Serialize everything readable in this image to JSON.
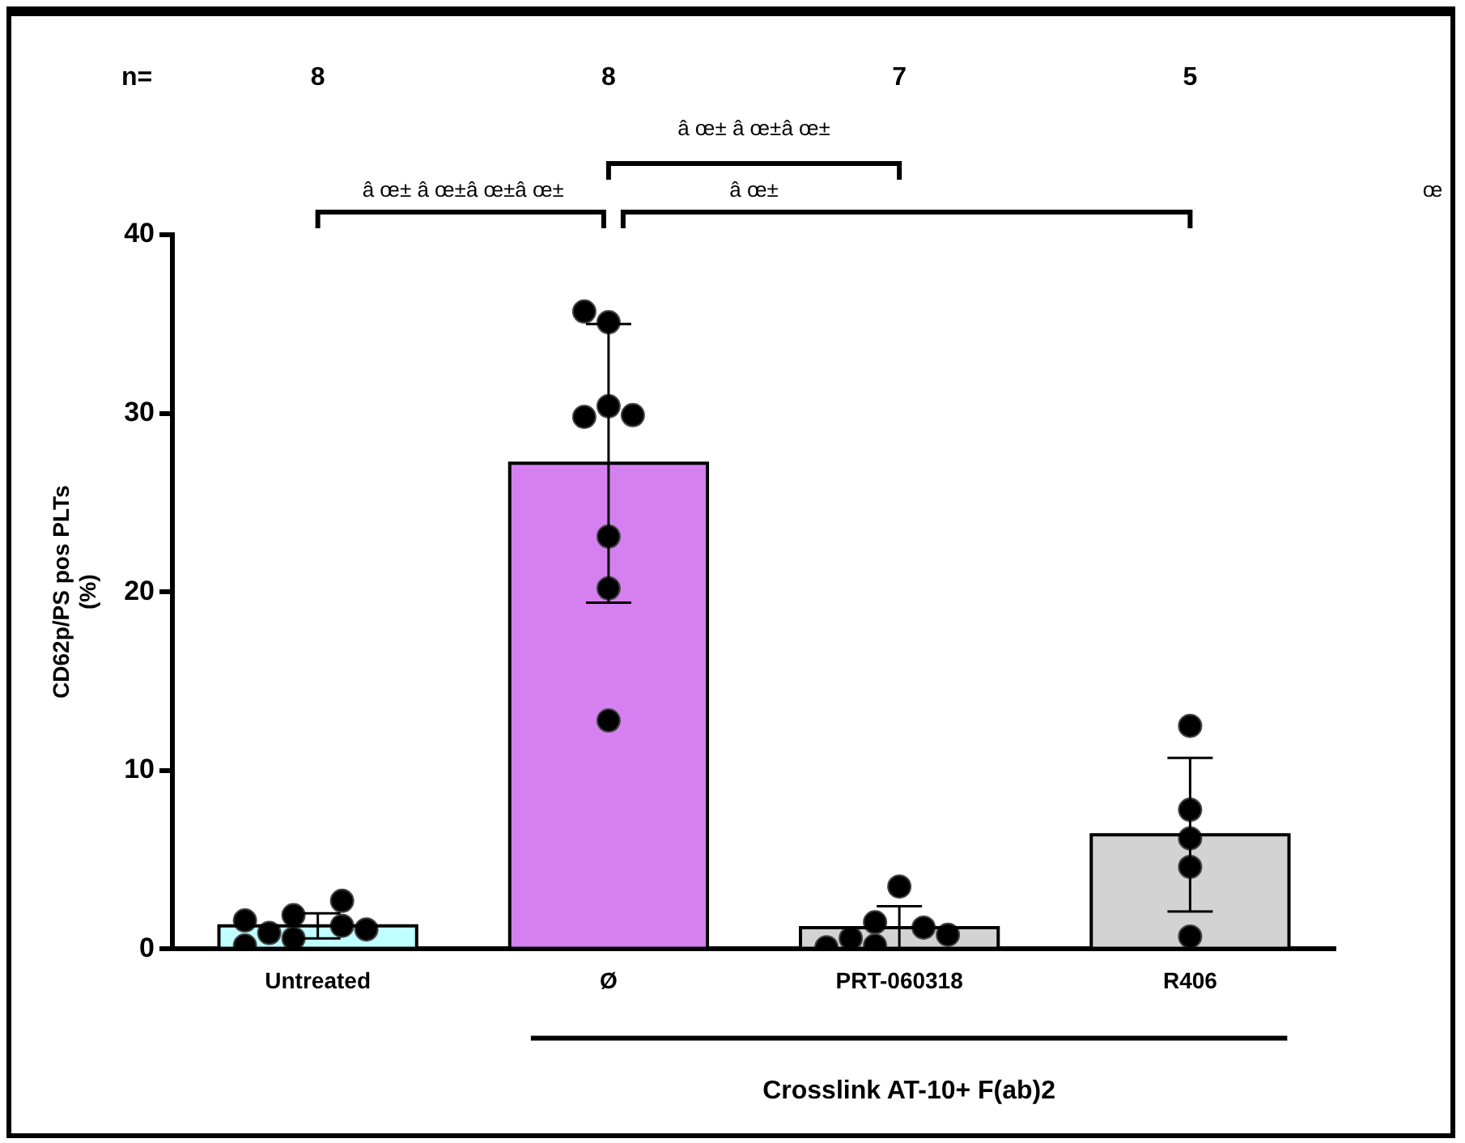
{
  "chart_data": {
    "type": "bar",
    "categories": [
      "Untreated",
      "Ø",
      "PRT-060318",
      "R406"
    ],
    "ylabel": "CD62p/PS pos PLTs\n(%)",
    "ylim": [
      0,
      40
    ],
    "yticks": [
      0,
      10,
      20,
      30,
      40
    ],
    "grid": false,
    "legend": false,
    "series": [
      {
        "type": "bar",
        "colors": [
          "#c0ffff",
          "#d580f0",
          "#d3d3d3",
          "#d3d3d3"
        ],
        "values": [
          1.3,
          27.2,
          1.2,
          6.4
        ],
        "errors": [
          0.7,
          7.8,
          1.2,
          4.3
        ]
      },
      {
        "type": "scatter",
        "color": "#000000",
        "marker": "circle",
        "x": [
          "Untreated",
          "Untreated",
          "Untreated",
          "Untreated",
          "Untreated",
          "Untreated",
          "Untreated",
          "Untreated",
          "Ø",
          "Ø",
          "Ø",
          "Ø",
          "Ø",
          "Ø",
          "Ø",
          "Ø",
          "PRT-060318",
          "PRT-060318",
          "PRT-060318",
          "PRT-060318",
          "PRT-060318",
          "PRT-060318",
          "PRT-060318",
          "R406",
          "R406",
          "R406",
          "R406",
          "R406"
        ],
        "values": [
          1.9,
          0.6,
          1.3,
          2.7,
          0.9,
          1.1,
          1.6,
          0.2,
          35.1,
          35.7,
          30.4,
          29.8,
          29.9,
          23.1,
          20.2,
          12.8,
          0.2,
          1.2,
          3.5,
          0.6,
          0.8,
          1.5,
          0.1,
          12.5,
          7.8,
          6.2,
          4.6,
          0.7
        ]
      }
    ],
    "annotations": [
      "n=",
      "8",
      "8",
      "7",
      "5",
      "â œ± â œ±â œ±",
      "â œ± â œ±â œ±â œ±",
      "â œ±",
      "œ",
      "Crosslink AT-10+ F(ab)2"
    ]
  }
}
